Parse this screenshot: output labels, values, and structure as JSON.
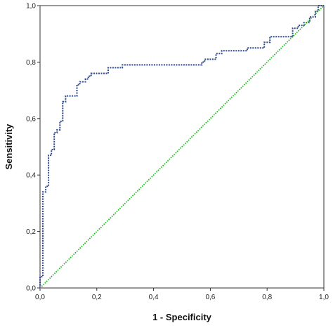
{
  "chart_data": {
    "type": "line",
    "xlabel": "1 - Specificity",
    "ylabel": "Sensitivity",
    "xlim": [
      0,
      1
    ],
    "ylim": [
      0,
      1
    ],
    "x_ticks": [
      "0,0",
      "0,2",
      "0,4",
      "0,6",
      "0,8",
      "1,0"
    ],
    "y_ticks": [
      "0,0",
      "0,2",
      "0,4",
      "0,6",
      "0,8",
      "1,0"
    ],
    "grid": false,
    "series": [
      {
        "style": "step",
        "color": "#2e4a8c",
        "x": [
          0.0,
          0.0,
          0.01,
          0.01,
          0.02,
          0.02,
          0.03,
          0.03,
          0.04,
          0.04,
          0.05,
          0.05,
          0.06,
          0.06,
          0.07,
          0.07,
          0.08,
          0.08,
          0.09,
          0.09,
          0.1,
          0.1,
          0.11,
          0.11,
          0.13,
          0.13,
          0.14,
          0.14,
          0.16,
          0.16,
          0.17,
          0.17,
          0.18,
          0.18,
          0.24,
          0.24,
          0.26,
          0.26,
          0.29,
          0.29,
          0.57,
          0.57,
          0.58,
          0.58,
          0.62,
          0.62,
          0.64,
          0.64,
          0.73,
          0.73,
          0.75,
          0.75,
          0.79,
          0.79,
          0.81,
          0.81,
          0.89,
          0.89,
          0.91,
          0.91,
          0.93,
          0.93,
          0.95,
          0.95,
          0.97,
          0.97,
          0.98,
          0.98,
          1.0
        ],
        "y": [
          0.0,
          0.04,
          0.04,
          0.34,
          0.34,
          0.36,
          0.36,
          0.47,
          0.47,
          0.49,
          0.49,
          0.55,
          0.55,
          0.56,
          0.56,
          0.59,
          0.59,
          0.66,
          0.66,
          0.68,
          0.68,
          0.68,
          0.68,
          0.68,
          0.68,
          0.72,
          0.72,
          0.73,
          0.73,
          0.74,
          0.74,
          0.75,
          0.75,
          0.76,
          0.76,
          0.78,
          0.78,
          0.78,
          0.78,
          0.79,
          0.79,
          0.8,
          0.8,
          0.81,
          0.81,
          0.83,
          0.83,
          0.84,
          0.84,
          0.85,
          0.85,
          0.85,
          0.85,
          0.87,
          0.87,
          0.89,
          0.89,
          0.92,
          0.92,
          0.93,
          0.93,
          0.94,
          0.94,
          0.96,
          0.96,
          0.98,
          0.98,
          1.0,
          1.0
        ]
      },
      {
        "style": "diagonal",
        "color": "#22bb22",
        "x": [
          0,
          1
        ],
        "y": [
          0,
          1
        ]
      }
    ]
  }
}
